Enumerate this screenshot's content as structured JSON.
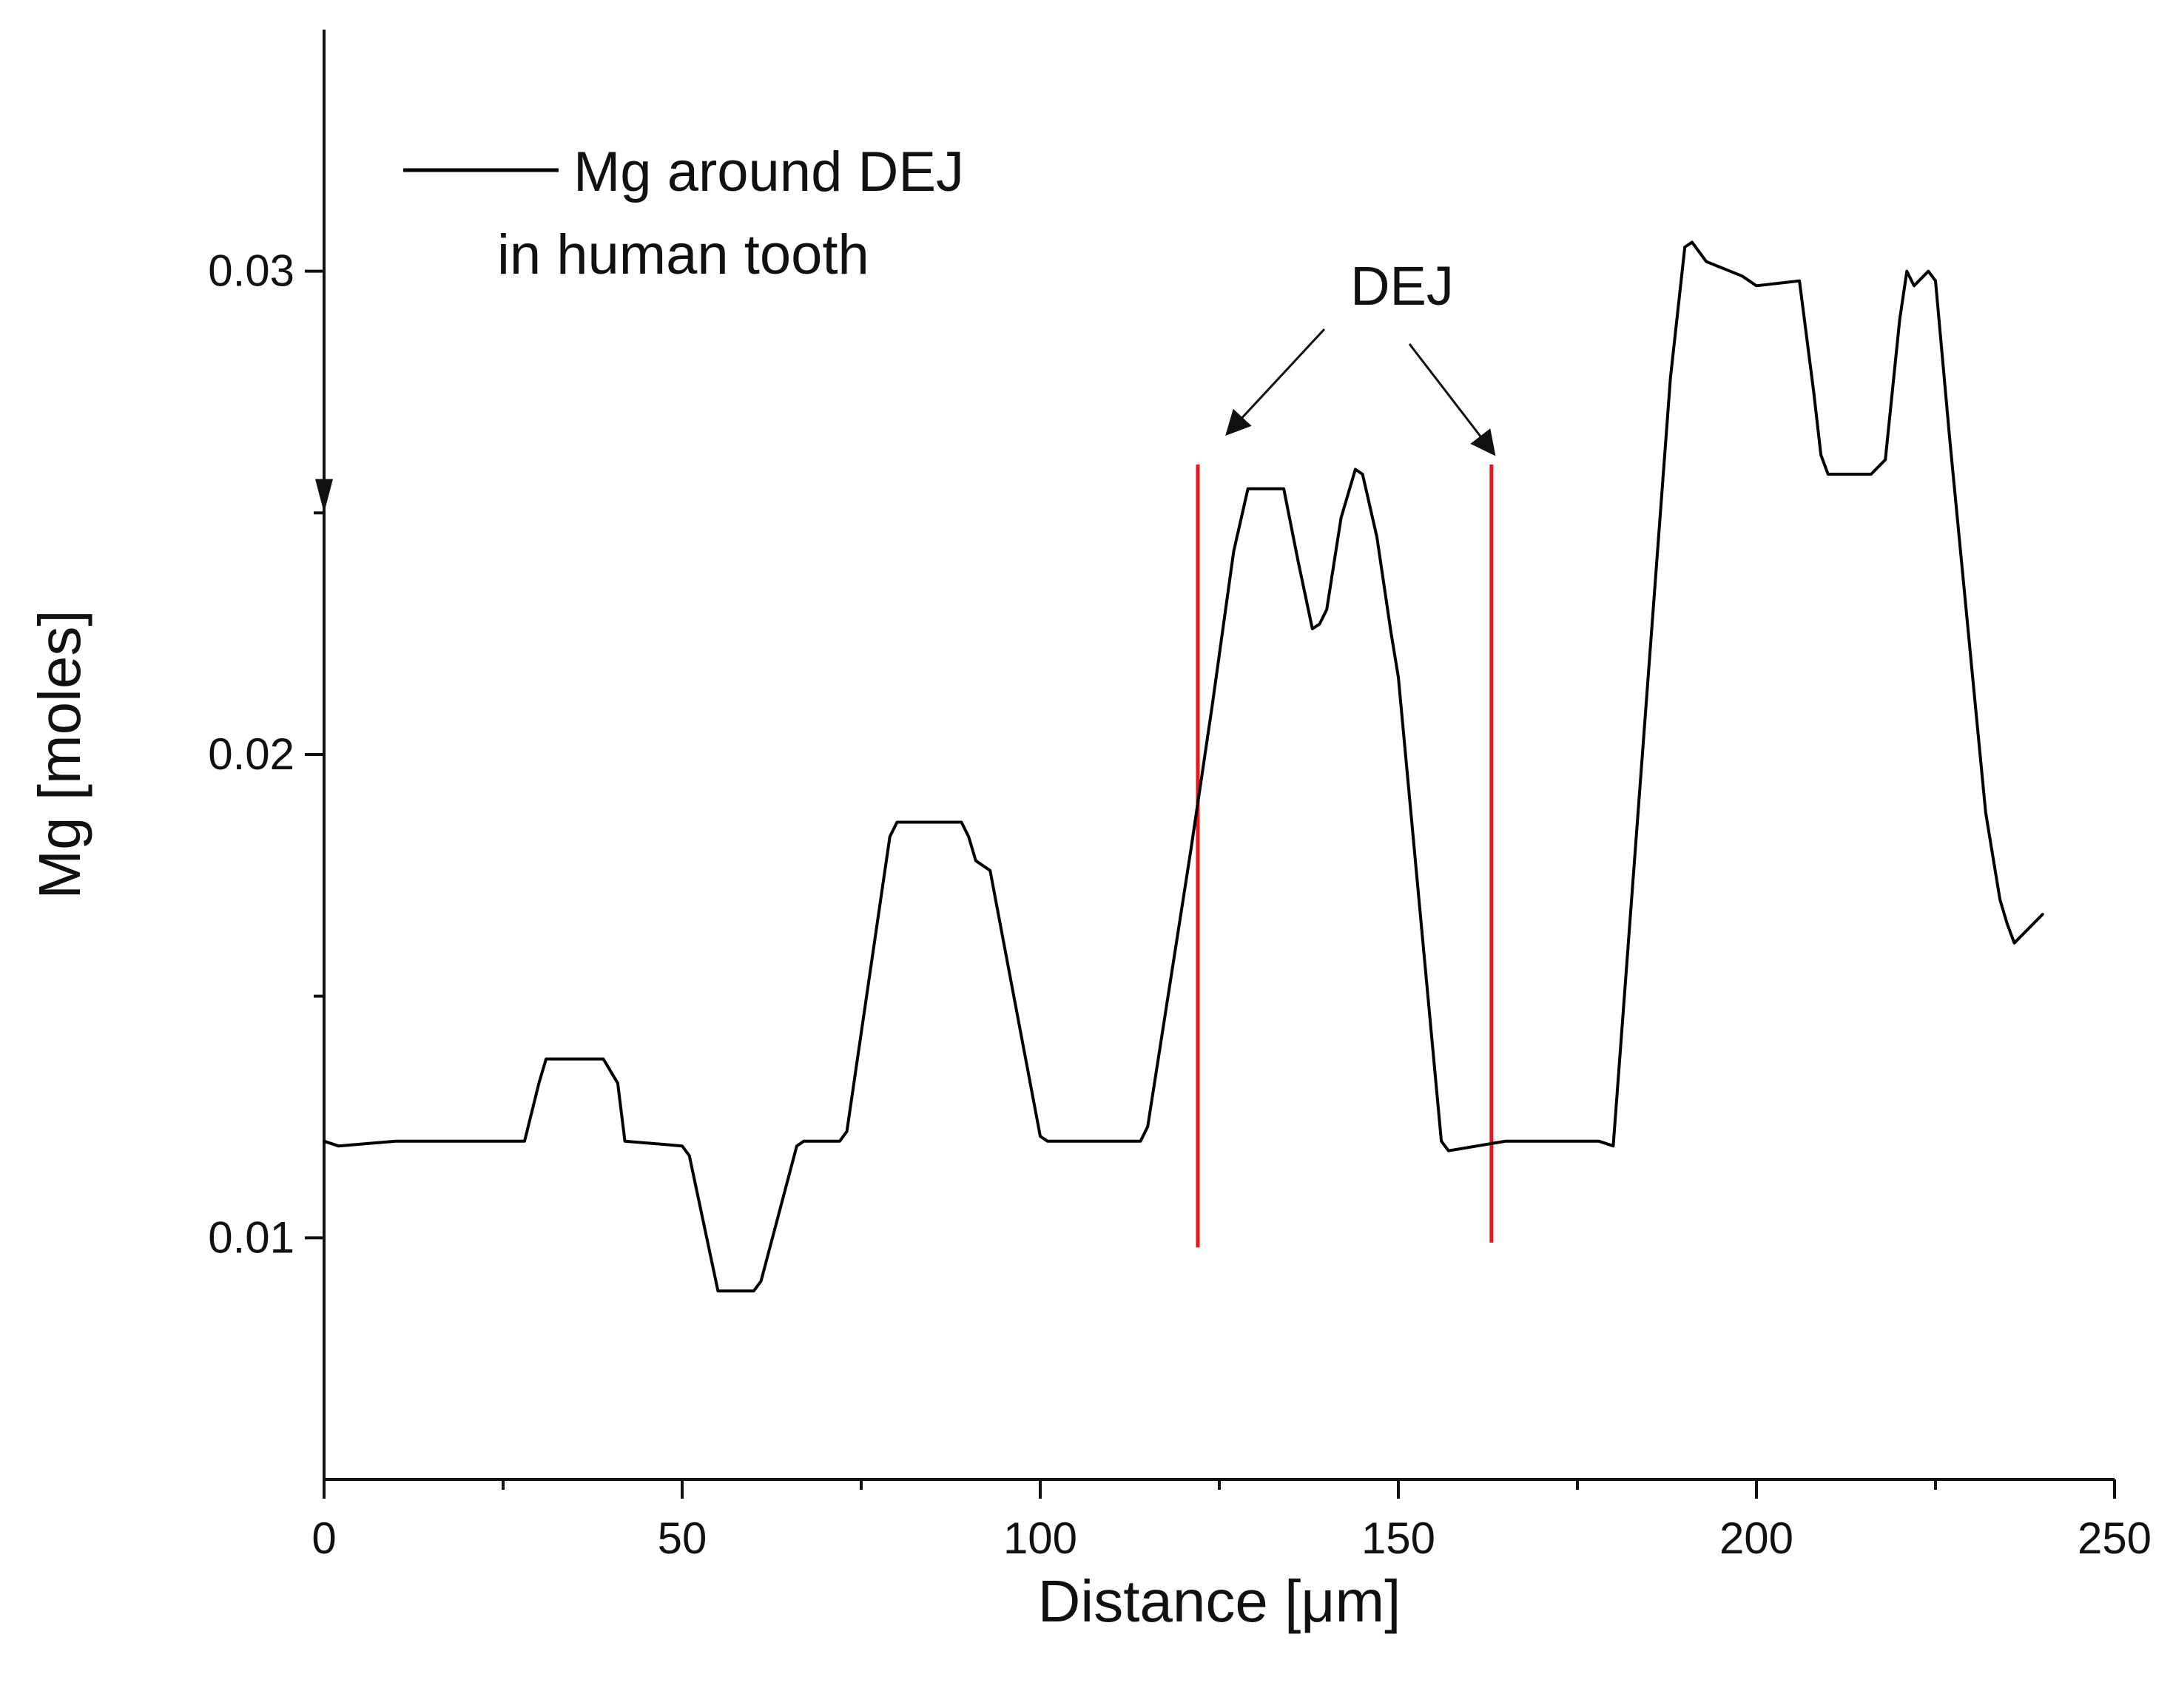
{
  "chart_data": {
    "type": "line",
    "title": "",
    "xlabel": "Distance [μm]",
    "ylabel": "Mg [moles]",
    "xlim": [
      0,
      250
    ],
    "ylim": [
      0.005,
      0.035
    ],
    "x_ticks": [
      0,
      50,
      100,
      150,
      200,
      250
    ],
    "x_tick_labels": [
      "0",
      "50",
      "100",
      "150",
      "200",
      "250"
    ],
    "y_ticks": [
      0.01,
      0.02,
      0.03
    ],
    "y_tick_labels": [
      "0.01",
      "0.02",
      "0.03"
    ],
    "grid": false,
    "legend": {
      "position": "top-left",
      "entries": [
        "Mg around DEJ",
        "in human tooth"
      ]
    },
    "series": [
      {
        "name": "Mg around DEJ in human tooth",
        "color": "#000000",
        "x": [
          0,
          2,
          10,
          20,
          28,
          30,
          31,
          39,
          41,
          42,
          50,
          51,
          55,
          56,
          60,
          61,
          66,
          67,
          72,
          73,
          79,
          80,
          89,
          90,
          91,
          93,
          100,
          101,
          106,
          114,
          115,
          121,
          124,
          127,
          129,
          130,
          134,
          136,
          138,
          139,
          140,
          142,
          144,
          145,
          147,
          149,
          150,
          156,
          157,
          165,
          170,
          178,
          180,
          188,
          190,
          191,
          193,
          198,
          200,
          206,
          208,
          209,
          210,
          211,
          216,
          218,
          220,
          221,
          222,
          224,
          225,
          227,
          232,
          234,
          235,
          236,
          240
        ],
        "y": [
          0.012,
          0.0119,
          0.012,
          0.012,
          0.012,
          0.0132,
          0.0137,
          0.0137,
          0.0132,
          0.012,
          0.0119,
          0.0117,
          0.0089,
          0.0089,
          0.0089,
          0.0091,
          0.0119,
          0.012,
          0.012,
          0.0122,
          0.0183,
          0.0186,
          0.0186,
          0.0183,
          0.0178,
          0.0176,
          0.0121,
          0.012,
          0.012,
          0.012,
          0.0123,
          0.018,
          0.021,
          0.0242,
          0.0255,
          0.0255,
          0.0255,
          0.024,
          0.0226,
          0.0227,
          0.023,
          0.0249,
          0.0259,
          0.0258,
          0.0245,
          0.0225,
          0.0216,
          0.012,
          0.0118,
          0.012,
          0.012,
          0.012,
          0.0119,
          0.0278,
          0.0305,
          0.0306,
          0.0302,
          0.0299,
          0.0297,
          0.0298,
          0.0275,
          0.0262,
          0.0258,
          0.0258,
          0.0258,
          0.0261,
          0.029,
          0.03,
          0.0297,
          0.03,
          0.0298,
          0.0265,
          0.0188,
          0.017,
          0.0165,
          0.0161,
          0.0167
        ]
      }
    ],
    "annotations": [
      {
        "text": "DEJ",
        "position": "top-center",
        "points_to": [
          122,
          163
        ]
      }
    ],
    "reference_lines": [
      {
        "type": "vertical",
        "x": 122,
        "color": "#e8191e",
        "y_from": 0.0098,
        "y_to": 0.026
      },
      {
        "type": "vertical",
        "x": 163,
        "color": "#e8191e",
        "y_from": 0.0099,
        "y_to": 0.026
      }
    ]
  }
}
